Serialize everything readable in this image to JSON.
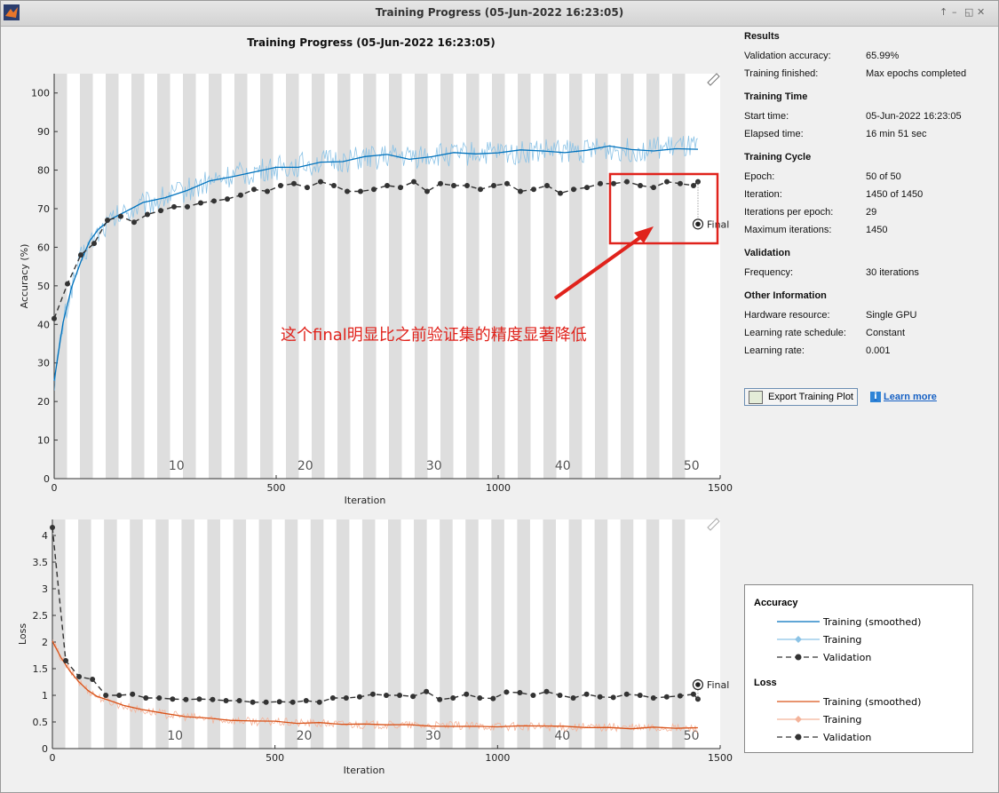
{
  "window": {
    "title": "Training Progress (05-Jun-2022 16:23:05)",
    "controls": [
      "↑",
      "–",
      "◱",
      "✕"
    ]
  },
  "plot_title": "Training Progress (05-Jun-2022 16:23:05)",
  "annotation": {
    "text": "这个final明显比之前验证集的精度显著降低",
    "color": "#e0231c"
  },
  "chart_data": [
    {
      "type": "line",
      "name": "accuracy-plot",
      "xlabel": "Iteration",
      "ylabel": "Accuracy (%)",
      "xlim": [
        0,
        1500
      ],
      "ylim": [
        0,
        105
      ],
      "x_ticks": [
        0,
        500,
        1000,
        1500
      ],
      "y_ticks": [
        0,
        10,
        20,
        30,
        40,
        50,
        60,
        70,
        80,
        90,
        100
      ],
      "epoch_labels": [
        "10",
        "20",
        "30",
        "40",
        "50"
      ],
      "epochs_total": 50,
      "iterations_per_epoch": 29,
      "validation": {
        "x": [
          0,
          30,
          60,
          90,
          120,
          150,
          180,
          210,
          240,
          270,
          300,
          330,
          360,
          390,
          420,
          450,
          480,
          510,
          540,
          570,
          600,
          630,
          660,
          690,
          720,
          750,
          780,
          810,
          840,
          870,
          900,
          930,
          960,
          990,
          1020,
          1050,
          1080,
          1110,
          1140,
          1170,
          1200,
          1230,
          1260,
          1290,
          1320,
          1350,
          1380,
          1410,
          1440,
          1450
        ],
        "values": [
          41.5,
          50.5,
          58,
          61,
          67,
          68,
          66.5,
          68.5,
          69.5,
          70.5,
          70.5,
          71.5,
          72,
          72.5,
          73.5,
          75,
          74.5,
          76,
          76.5,
          75.5,
          77,
          76,
          74.5,
          74.5,
          75,
          76,
          75.5,
          77,
          74.5,
          76.5,
          76,
          76,
          75,
          76,
          76.5,
          74.5,
          75,
          76,
          74,
          75,
          75.5,
          76.5,
          76.5,
          77,
          76,
          75.5,
          77,
          76.5,
          76,
          77
        ]
      },
      "training_smoothed": {
        "x": [
          0,
          20,
          40,
          60,
          80,
          100,
          130,
          160,
          200,
          250,
          300,
          350,
          400,
          450,
          500,
          550,
          600,
          650,
          700,
          750,
          800,
          850,
          900,
          950,
          1000,
          1050,
          1100,
          1150,
          1200,
          1250,
          1300,
          1350,
          1400,
          1450
        ],
        "values": [
          25,
          40,
          50,
          57,
          61,
          64,
          67,
          69,
          71,
          73,
          75,
          77,
          78.5,
          79.5,
          80.5,
          81.5,
          82,
          82.5,
          83,
          83.5,
          83.5,
          84,
          84,
          84.5,
          84.5,
          84.5,
          85,
          85,
          85,
          85.5,
          85,
          85.5,
          86,
          85.5
        ]
      },
      "final": {
        "x": 1450,
        "value": 66,
        "label": "Final"
      }
    },
    {
      "type": "line",
      "name": "loss-plot",
      "xlabel": "Iteration",
      "ylabel": "Loss",
      "xlim": [
        0,
        1500
      ],
      "ylim": [
        0,
        4.3
      ],
      "x_ticks": [
        0,
        500,
        1000,
        1500
      ],
      "y_ticks": [
        0,
        0.5,
        1,
        1.5,
        2,
        2.5,
        3,
        3.5,
        4
      ],
      "epoch_labels": [
        "10",
        "20",
        "30",
        "40",
        "50"
      ],
      "validation": {
        "x": [
          0,
          30,
          60,
          90,
          120,
          150,
          180,
          210,
          240,
          270,
          300,
          330,
          360,
          390,
          420,
          450,
          480,
          510,
          540,
          570,
          600,
          630,
          660,
          690,
          720,
          750,
          780,
          810,
          840,
          870,
          900,
          930,
          960,
          990,
          1020,
          1050,
          1080,
          1110,
          1140,
          1170,
          1200,
          1230,
          1260,
          1290,
          1320,
          1350,
          1380,
          1410,
          1440,
          1450
        ],
        "values": [
          4.15,
          1.65,
          1.35,
          1.3,
          1.0,
          1.0,
          1.02,
          0.95,
          0.95,
          0.93,
          0.92,
          0.93,
          0.92,
          0.9,
          0.9,
          0.87,
          0.87,
          0.88,
          0.87,
          0.9,
          0.87,
          0.95,
          0.95,
          0.97,
          1.02,
          1.0,
          1.0,
          0.98,
          1.07,
          0.92,
          0.95,
          1.02,
          0.95,
          0.94,
          1.06,
          1.05,
          1.0,
          1.07,
          1.0,
          0.95,
          1.02,
          0.97,
          0.96,
          1.02,
          1.0,
          0.95,
          0.97,
          0.99,
          1.02,
          0.93
        ]
      },
      "training_smoothed": {
        "x": [
          0,
          20,
          40,
          60,
          80,
          100,
          130,
          160,
          200,
          250,
          300,
          350,
          400,
          450,
          500,
          550,
          600,
          650,
          700,
          750,
          800,
          850,
          900,
          950,
          1000,
          1050,
          1100,
          1150,
          1200,
          1250,
          1300,
          1350,
          1400,
          1450
        ],
        "values": [
          2.0,
          1.7,
          1.45,
          1.25,
          1.1,
          0.98,
          0.88,
          0.8,
          0.72,
          0.65,
          0.6,
          0.56,
          0.53,
          0.51,
          0.5,
          0.48,
          0.47,
          0.46,
          0.45,
          0.44,
          0.44,
          0.43,
          0.43,
          0.42,
          0.42,
          0.41,
          0.41,
          0.4,
          0.4,
          0.4,
          0.39,
          0.39,
          0.38,
          0.38
        ]
      },
      "final": {
        "x": 1450,
        "value": 1.2,
        "label": "Final"
      }
    }
  ],
  "results": {
    "heading": "Results",
    "rows": [
      {
        "k": "Validation accuracy:",
        "v": "65.99%"
      },
      {
        "k": "Training finished:",
        "v": "Max epochs completed"
      }
    ]
  },
  "training_time": {
    "heading": "Training Time",
    "rows": [
      {
        "k": "Start time:",
        "v": "05-Jun-2022 16:23:05"
      },
      {
        "k": "Elapsed time:",
        "v": "16 min 51 sec"
      }
    ]
  },
  "training_cycle": {
    "heading": "Training Cycle",
    "rows": [
      {
        "k": "Epoch:",
        "v": "50 of 50"
      },
      {
        "k": "Iteration:",
        "v": "1450 of 1450"
      },
      {
        "k": "Iterations per epoch:",
        "v": "29"
      },
      {
        "k": "Maximum iterations:",
        "v": "1450"
      }
    ]
  },
  "validation": {
    "heading": "Validation",
    "rows": [
      {
        "k": "Frequency:",
        "v": "30 iterations"
      }
    ]
  },
  "other_info": {
    "heading": "Other Information",
    "rows": [
      {
        "k": "Hardware resource:",
        "v": "Single GPU"
      },
      {
        "k": "Learning rate schedule:",
        "v": "Constant"
      },
      {
        "k": "Learning rate:",
        "v": "0.001"
      }
    ]
  },
  "actions": {
    "export_label": "Export Training Plot",
    "learn_more_label": "Learn more"
  },
  "legend": {
    "accuracy_heading": "Accuracy",
    "loss_heading": "Loss",
    "training_smoothed": "Training (smoothed)",
    "training": "Training",
    "validation": "Validation"
  },
  "colors": {
    "acc_smoothed": "#0072bd",
    "acc_raw": "#8cc3e6",
    "loss_smoothed": "#d95319",
    "loss_raw": "#f4b39a",
    "validation": "#333333",
    "epoch_band": "#dedede",
    "highlight": "#e0231c"
  }
}
